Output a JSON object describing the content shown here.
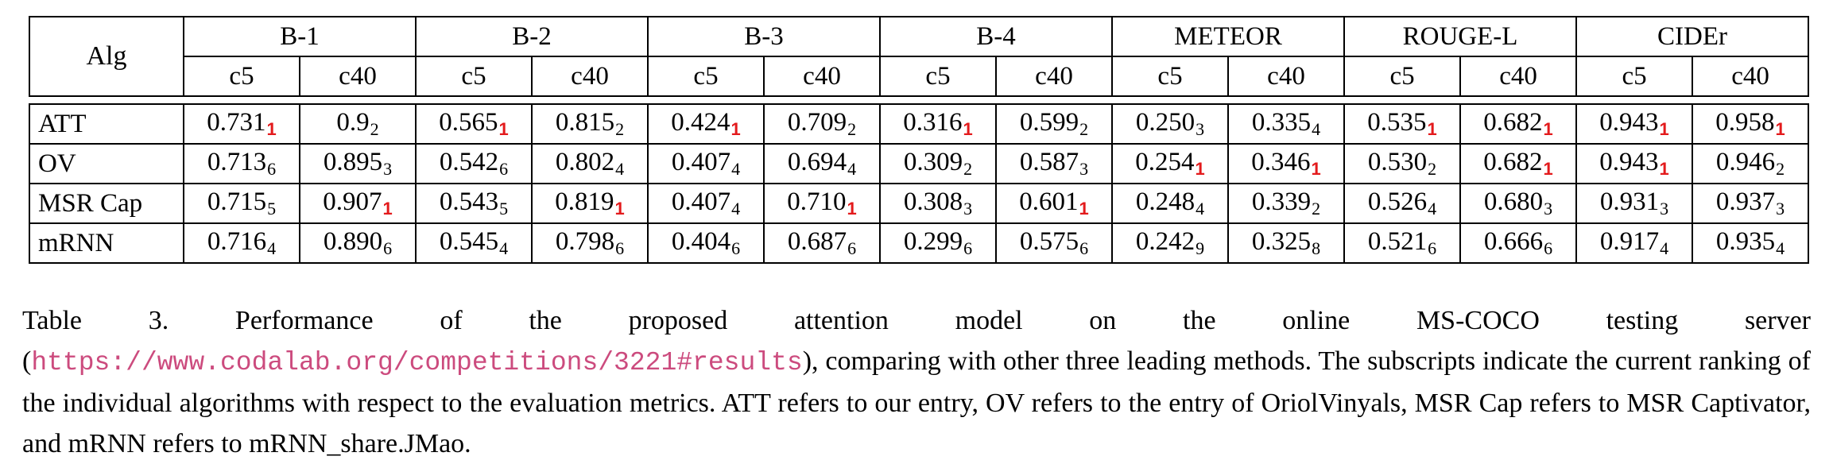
{
  "table": {
    "corner_label": "Alg",
    "metric_groups": [
      "B-1",
      "B-2",
      "B-3",
      "B-4",
      "METEOR",
      "ROUGE-L",
      "CIDEr"
    ],
    "sub_headers": [
      "c5",
      "c40"
    ],
    "rows": [
      {
        "alg": "ATT",
        "cells": [
          {
            "v": "0.731",
            "r": "1"
          },
          {
            "v": "0.9",
            "r": "2"
          },
          {
            "v": "0.565",
            "r": "1"
          },
          {
            "v": "0.815",
            "r": "2"
          },
          {
            "v": "0.424",
            "r": "1"
          },
          {
            "v": "0.709",
            "r": "2"
          },
          {
            "v": "0.316",
            "r": "1"
          },
          {
            "v": "0.599",
            "r": "2"
          },
          {
            "v": "0.250",
            "r": "3"
          },
          {
            "v": "0.335",
            "r": "4"
          },
          {
            "v": "0.535",
            "r": "1"
          },
          {
            "v": "0.682",
            "r": "1"
          },
          {
            "v": "0.943",
            "r": "1"
          },
          {
            "v": "0.958",
            "r": "1"
          }
        ]
      },
      {
        "alg": "OV",
        "cells": [
          {
            "v": "0.713",
            "r": "6"
          },
          {
            "v": "0.895",
            "r": "3"
          },
          {
            "v": "0.542",
            "r": "6"
          },
          {
            "v": "0.802",
            "r": "4"
          },
          {
            "v": "0.407",
            "r": "4"
          },
          {
            "v": "0.694",
            "r": "4"
          },
          {
            "v": "0.309",
            "r": "2"
          },
          {
            "v": "0.587",
            "r": "3"
          },
          {
            "v": "0.254",
            "r": "1"
          },
          {
            "v": "0.346",
            "r": "1"
          },
          {
            "v": "0.530",
            "r": "2"
          },
          {
            "v": "0.682",
            "r": "1"
          },
          {
            "v": "0.943",
            "r": "1"
          },
          {
            "v": "0.946",
            "r": "2"
          }
        ]
      },
      {
        "alg": "MSR Cap",
        "cells": [
          {
            "v": "0.715",
            "r": "5"
          },
          {
            "v": "0.907",
            "r": "1"
          },
          {
            "v": "0.543",
            "r": "5"
          },
          {
            "v": "0.819",
            "r": "1"
          },
          {
            "v": "0.407",
            "r": "4"
          },
          {
            "v": "0.710",
            "r": "1"
          },
          {
            "v": "0.308",
            "r": "3"
          },
          {
            "v": "0.601",
            "r": "1"
          },
          {
            "v": "0.248",
            "r": "4"
          },
          {
            "v": "0.339",
            "r": "2"
          },
          {
            "v": "0.526",
            "r": "4"
          },
          {
            "v": "0.680",
            "r": "3"
          },
          {
            "v": "0.931",
            "r": "3"
          },
          {
            "v": "0.937",
            "r": "3"
          }
        ]
      },
      {
        "alg": "mRNN",
        "cells": [
          {
            "v": "0.716",
            "r": "4"
          },
          {
            "v": "0.890",
            "r": "6"
          },
          {
            "v": "0.545",
            "r": "4"
          },
          {
            "v": "0.798",
            "r": "6"
          },
          {
            "v": "0.404",
            "r": "6"
          },
          {
            "v": "0.687",
            "r": "6"
          },
          {
            "v": "0.299",
            "r": "6"
          },
          {
            "v": "0.575",
            "r": "6"
          },
          {
            "v": "0.242",
            "r": "9"
          },
          {
            "v": "0.325",
            "r": "8"
          },
          {
            "v": "0.521",
            "r": "6"
          },
          {
            "v": "0.666",
            "r": "6"
          },
          {
            "v": "0.917",
            "r": "4"
          },
          {
            "v": "0.935",
            "r": "4"
          }
        ]
      }
    ],
    "first_rank_color": "#e31a1c"
  },
  "caption": {
    "prefix": "Table 3. Performance of the proposed attention model on the online MS-COCO testing server (",
    "link": "https://www.codalab.org/competitions/3221#results",
    "suffix": "), comparing with other three leading methods.  The subscripts indicate the current ranking of the individual algorithms with respect to the evaluation metrics.  ATT refers to our entry, OV refers to the entry of OriolVinyals, MSR Cap refers to MSR Captivator, and mRNN refers to mRNN_share.JMao.",
    "link_color": "#cc4b7e"
  }
}
